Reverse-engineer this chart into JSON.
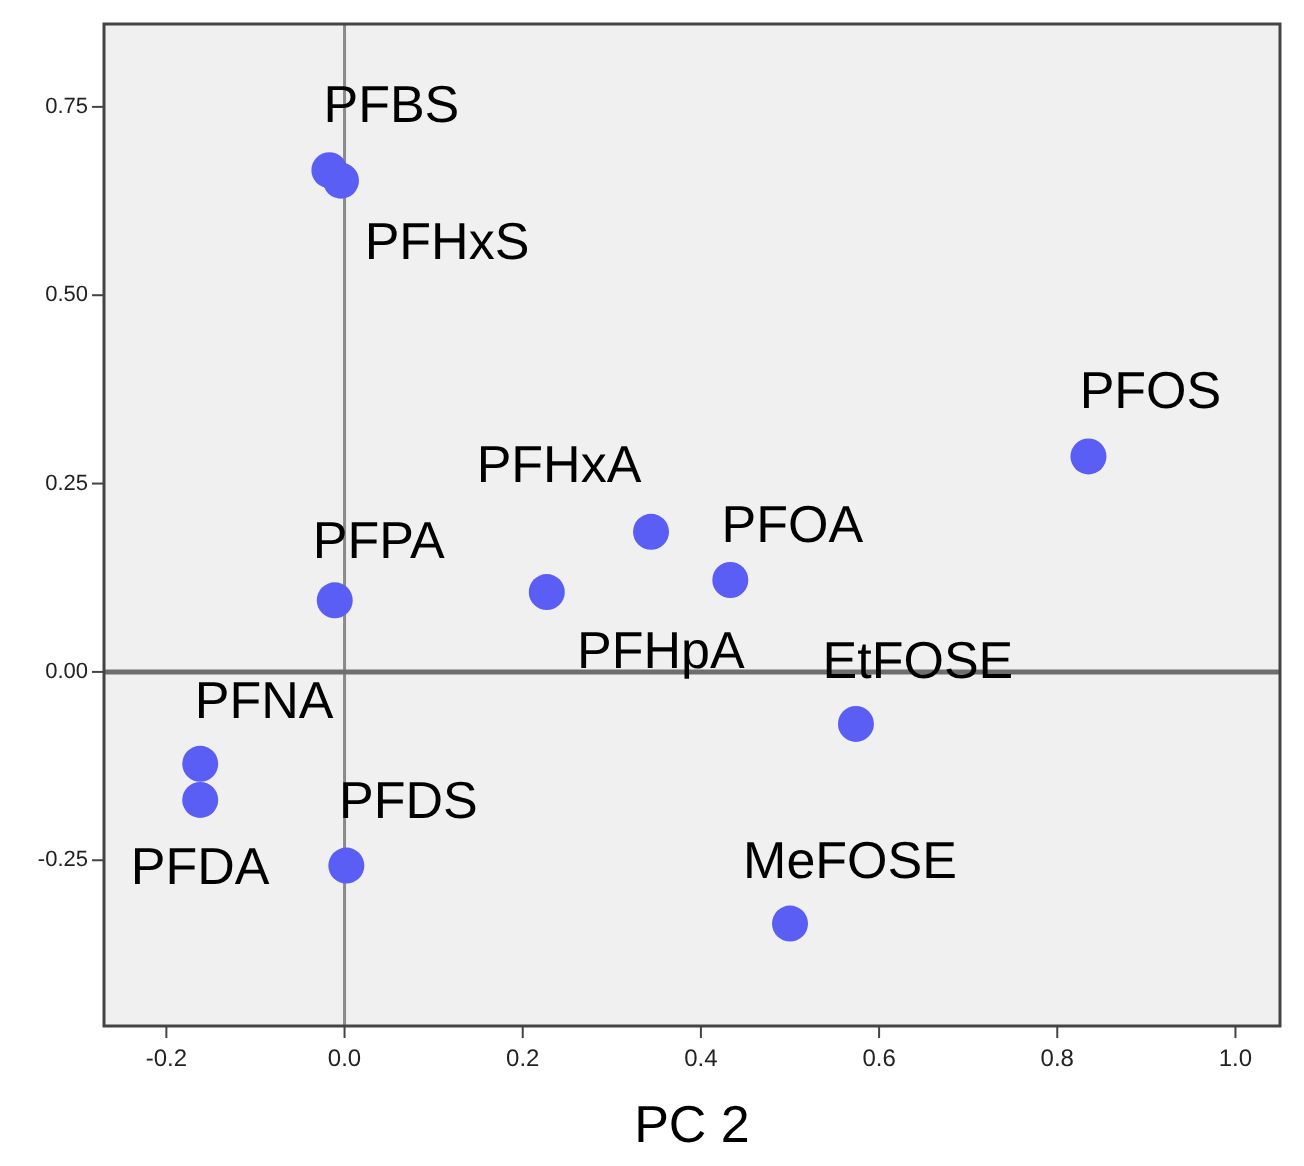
{
  "chart_data": {
    "type": "scatter",
    "xlabel": "PC 2",
    "xlim": [
      -0.27,
      1.05
    ],
    "ylim": [
      -0.47,
      0.86
    ],
    "xticks": [
      {
        "value": -0.2,
        "label": "-0.2"
      },
      {
        "value": 0,
        "label": "0.0"
      },
      {
        "value": 0.2,
        "label": "0.2"
      },
      {
        "value": 0.4,
        "label": "0.4"
      },
      {
        "value": 0.6,
        "label": "0.6"
      },
      {
        "value": 0.8,
        "label": "0.8"
      },
      {
        "value": 1,
        "label": "1.0"
      }
    ],
    "yticks": [
      {
        "value": -0.25,
        "label": "-0.25"
      },
      {
        "value": 0,
        "label": "0.00"
      },
      {
        "value": 0.25,
        "label": "0.25"
      },
      {
        "value": 0.5,
        "label": "0.50"
      },
      {
        "value": 0.75,
        "label": "0.75"
      }
    ],
    "grid": false,
    "legend": false,
    "marker": "circle",
    "ref_lines": [
      {
        "axis": "x",
        "value": 0,
        "color": "#8a8a8a"
      },
      {
        "axis": "y",
        "value": 0,
        "color": "#6e6e6e"
      }
    ],
    "series": [
      {
        "name": "PFBS",
        "color": "#5a5ef5",
        "x": [
          -0.017
        ],
        "values": [
          0.666
        ]
      },
      {
        "name": "PFHxS",
        "color": "#5a5ef5",
        "x": [
          -0.004
        ],
        "values": [
          0.652
        ]
      },
      {
        "name": "PFPA",
        "color": "#5a5ef5",
        "x": [
          -0.011
        ],
        "values": [
          0.095
        ]
      },
      {
        "name": "PFHpA",
        "color": "#5a5ef5",
        "x": [
          0.227
        ],
        "values": [
          0.106
        ]
      },
      {
        "name": "PFHxA",
        "color": "#5a5ef5",
        "x": [
          0.344
        ],
        "values": [
          0.186
        ]
      },
      {
        "name": "PFNA",
        "color": "#5a5ef5",
        "x": [
          -0.162
        ],
        "values": [
          -0.122
        ]
      },
      {
        "name": "PFDA",
        "color": "#5a5ef5",
        "x": [
          -0.162
        ],
        "values": [
          -0.17
        ]
      },
      {
        "name": "PFDS",
        "color": "#5a5ef5",
        "x": [
          0.002
        ],
        "values": [
          -0.257
        ]
      },
      {
        "name": "PFOA",
        "color": "#5a5ef5",
        "x": [
          0.433
        ],
        "values": [
          0.122
        ]
      },
      {
        "name": "PFOS",
        "color": "#5a5ef5",
        "x": [
          0.835
        ],
        "values": [
          0.286
        ]
      },
      {
        "name": "EtFOSE",
        "color": "#5a5ef5",
        "x": [
          0.574
        ],
        "values": [
          -0.069
        ]
      },
      {
        "name": "MeFOSE",
        "color": "#5a5ef5",
        "x": [
          0.5
        ],
        "values": [
          -0.334
        ]
      }
    ]
  }
}
